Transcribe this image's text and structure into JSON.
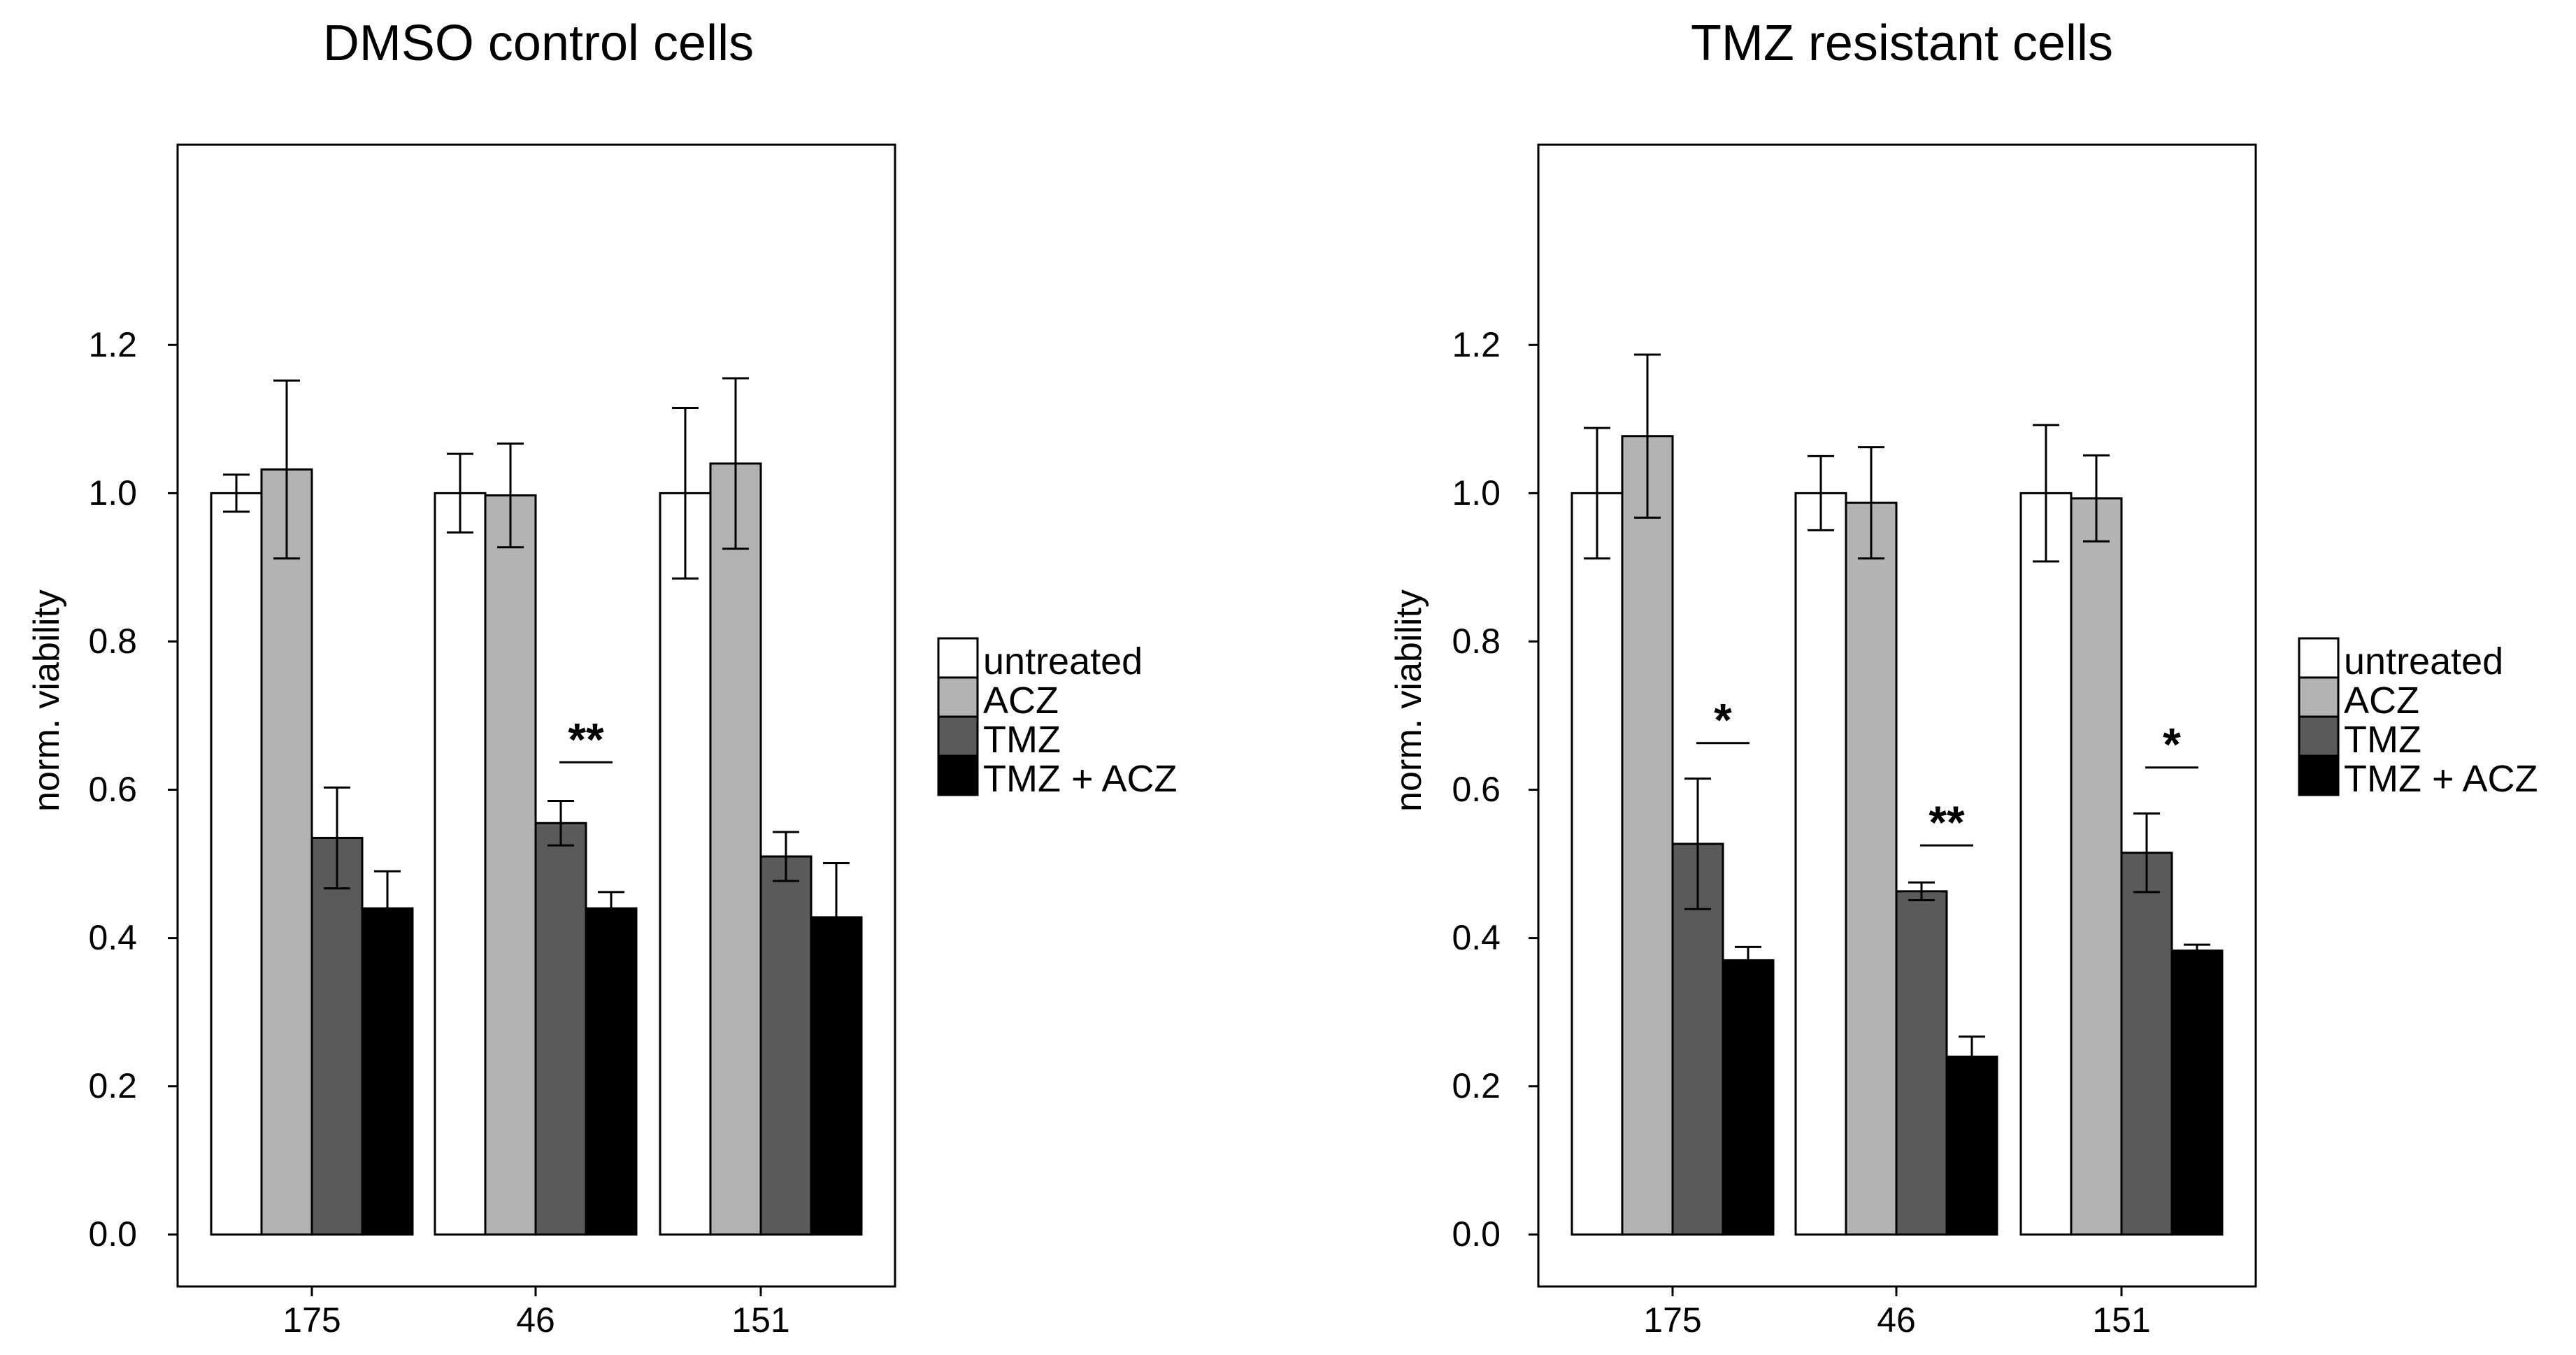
{
  "chart_data": [
    {
      "type": "bar",
      "title": "DMSO control cells",
      "xlabel": "",
      "ylabel": "norm. viability",
      "categories": [
        "175",
        "46",
        "151"
      ],
      "ylim": [
        -0.07,
        1.47
      ],
      "yticks": [
        0.0,
        0.2,
        0.4,
        0.6,
        0.8,
        1.0,
        1.2
      ],
      "ytick_labels": [
        "0.0",
        "0.2",
        "0.4",
        "0.6",
        "0.8",
        "1.0",
        "1.2"
      ],
      "series": [
        {
          "name": "untreated",
          "color": "#ffffff",
          "values": [
            1.0,
            1.0,
            1.0
          ],
          "errors": [
            0.025,
            0.053,
            0.115
          ]
        },
        {
          "name": "ACZ",
          "color": "#b3b3b3",
          "values": [
            1.032,
            0.997,
            1.04
          ],
          "errors": [
            0.12,
            0.07,
            0.115
          ]
        },
        {
          "name": "TMZ",
          "color": "#5a5a5a",
          "values": [
            0.535,
            0.555,
            0.51
          ],
          "errors": [
            0.068,
            0.03,
            0.033
          ]
        },
        {
          "name": "TMZ + ACZ",
          "color": "#000000",
          "values": [
            0.44,
            0.44,
            0.428
          ],
          "errors": [
            0.05,
            0.022,
            0.073
          ]
        }
      ],
      "significance": [
        {
          "category_index": 1,
          "from_series": 2,
          "to_series": 3,
          "label": "**",
          "y": 0.637
        }
      ],
      "legend_position": "right"
    },
    {
      "type": "bar",
      "title": "TMZ resistant cells",
      "xlabel": "",
      "ylabel": "norm. viability",
      "categories": [
        "175",
        "46",
        "151"
      ],
      "ylim": [
        -0.07,
        1.47
      ],
      "yticks": [
        0.0,
        0.2,
        0.4,
        0.6,
        0.8,
        1.0,
        1.2
      ],
      "ytick_labels": [
        "0.0",
        "0.2",
        "0.4",
        "0.6",
        "0.8",
        "1.0",
        "1.2"
      ],
      "series": [
        {
          "name": "untreated",
          "color": "#ffffff",
          "values": [
            1.0,
            1.0,
            1.0
          ],
          "errors": [
            0.088,
            0.05,
            0.092
          ]
        },
        {
          "name": "ACZ",
          "color": "#b3b3b3",
          "values": [
            1.077,
            0.987,
            0.993
          ],
          "errors": [
            0.11,
            0.075,
            0.058
          ]
        },
        {
          "name": "TMZ",
          "color": "#5a5a5a",
          "values": [
            0.527,
            0.463,
            0.515
          ],
          "errors": [
            0.088,
            0.012,
            0.053
          ]
        },
        {
          "name": "TMZ + ACZ",
          "color": "#000000",
          "values": [
            0.37,
            0.24,
            0.383
          ],
          "errors": [
            0.018,
            0.027,
            0.008
          ]
        }
      ],
      "significance": [
        {
          "category_index": 0,
          "from_series": 2,
          "to_series": 3,
          "label": "*",
          "y": 0.663
        },
        {
          "category_index": 1,
          "from_series": 2,
          "to_series": 3,
          "label": "**",
          "y": 0.525
        },
        {
          "category_index": 2,
          "from_series": 2,
          "to_series": 3,
          "label": "*",
          "y": 0.63
        }
      ],
      "legend_position": "right"
    }
  ]
}
